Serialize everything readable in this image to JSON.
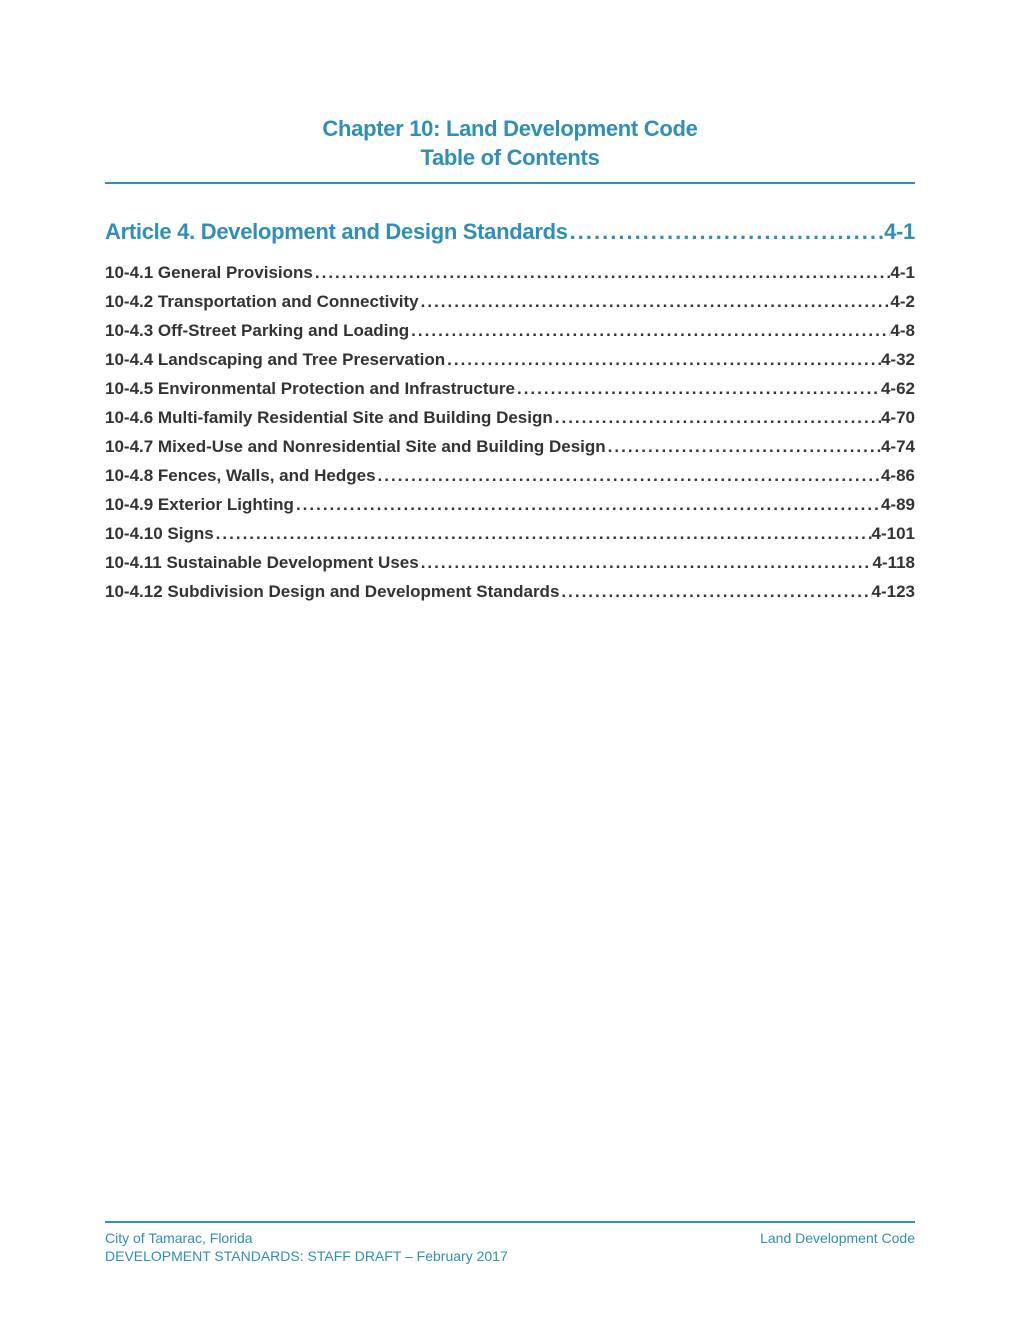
{
  "colors": {
    "accent": "#2e8fb8",
    "text": "#333333",
    "background": "#ffffff"
  },
  "typography": {
    "header_fontsize": 22,
    "article_fontsize": 22,
    "toc_fontsize": 17,
    "footer_fontsize": 14
  },
  "header": {
    "line1": "Chapter 10: Land Development Code",
    "line2": "Table of Contents"
  },
  "article": {
    "label": "Article 4. Development and Design Standards",
    "page": "4-1"
  },
  "toc": [
    {
      "label": "10-4.1 General Provisions",
      "page": "4-1"
    },
    {
      "label": "10-4.2 Transportation and Connectivity",
      "page": "4-2"
    },
    {
      "label": "10-4.3 Off-Street Parking and Loading",
      "page": "4-8"
    },
    {
      "label": "10-4.4 Landscaping and Tree Preservation",
      "page": "4-32"
    },
    {
      "label": "10-4.5 Environmental Protection and Infrastructure",
      "page": "4-62"
    },
    {
      "label": "10-4.6 Multi-family Residential Site and Building Design",
      "page": "4-70"
    },
    {
      "label": "10-4.7 Mixed-Use and Nonresidential Site and Building Design",
      "page": "4-74"
    },
    {
      "label": "10-4.8 Fences, Walls, and Hedges",
      "page": "4-86"
    },
    {
      "label": "10-4.9 Exterior Lighting",
      "page": "4-89"
    },
    {
      "label": "10-4.10 Signs",
      "page": "4-101"
    },
    {
      "label": "10-4.11 Sustainable Development Uses",
      "page": "4-118"
    },
    {
      "label": "10-4.12 Subdivision Design and Development Standards",
      "page": "4-123"
    }
  ],
  "footer": {
    "left_line1": "City of Tamarac, Florida",
    "left_line2": "DEVELOPMENT STANDARDS: STAFF DRAFT – February 2017",
    "right_line1": "Land Development Code"
  },
  "dot_leader": "........................................................................................................................................................"
}
